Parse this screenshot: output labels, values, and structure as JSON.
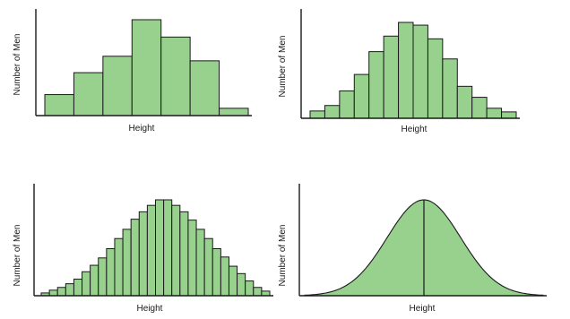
{
  "bar_fill": "#98d08e",
  "stroke_color": "#1a1a1a",
  "chart_data": [
    {
      "type": "bar",
      "xlabel": "Height",
      "ylabel": "Number of Men",
      "grid": false,
      "bin_count": 7,
      "values": [
        23,
        47,
        65,
        105,
        86,
        60,
        8
      ]
    },
    {
      "type": "bar",
      "xlabel": "Height",
      "ylabel": "Number of Men",
      "grid": false,
      "bin_count": 14,
      "values": [
        8,
        14,
        30,
        48,
        73,
        90,
        105,
        102,
        87,
        65,
        35,
        23,
        11,
        7
      ]
    },
    {
      "type": "bar",
      "xlabel": "Height",
      "ylabel": "Number of Men",
      "grid": false,
      "bin_count": 28,
      "values": [
        3,
        6,
        9,
        13,
        18,
        26,
        33,
        41,
        51,
        62,
        72,
        83,
        91,
        98,
        104,
        104,
        98,
        91,
        82,
        72,
        62,
        51,
        42,
        32,
        24,
        16,
        9,
        5
      ]
    },
    {
      "type": "area",
      "xlabel": "Height",
      "ylabel": "Number of Men",
      "grid": false,
      "distribution": "normal",
      "mean_marked": true,
      "peak_value": 105
    }
  ]
}
